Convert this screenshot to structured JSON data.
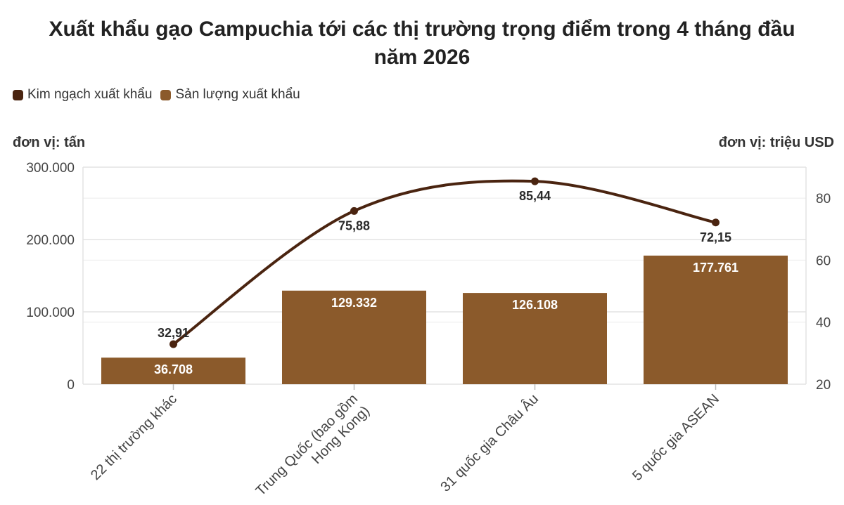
{
  "title_line1": "Xuất khẩu gạo Campuchia tới các thị trường trọng điểm trong 4 tháng đầu",
  "title_line2": "năm 2026",
  "legend": [
    {
      "label": "Kim ngạch xuất khẩu",
      "color": "#4a2410"
    },
    {
      "label": "Sản lượng xuất khẩu",
      "color": "#8b5a2b"
    }
  ],
  "unit_left": "đơn vị: tấn",
  "unit_right": "đơn vị: triệu USD",
  "chart_data": {
    "type": "bar+line",
    "categories": [
      [
        "22 thị trường khác"
      ],
      [
        "Trung Quốc (bao gồm",
        "Hong Kong)"
      ],
      [
        "31 quốc gia Châu Âu"
      ],
      [
        "5 quốc gia ASEAN"
      ]
    ],
    "bar_series": {
      "name": "Sản lượng xuất khẩu",
      "values": [
        36708,
        129332,
        126108,
        177761
      ],
      "labels": [
        "36.708",
        "129.332",
        "126.108",
        "177.761"
      ]
    },
    "line_series": {
      "name": "Kim ngạch xuất khẩu",
      "values": [
        32.91,
        75.88,
        85.44,
        72.15
      ],
      "labels": [
        "32,91",
        "75,88",
        "85,44",
        "72,15"
      ]
    },
    "y_left": {
      "range": [
        0,
        300000
      ],
      "ticks": [
        0,
        100000,
        200000,
        300000
      ],
      "tick_labels": [
        "0",
        "100.000",
        "200.000",
        "300.000"
      ]
    },
    "y_right": {
      "range": [
        20,
        90
      ],
      "ticks": [
        20,
        40,
        60,
        80
      ],
      "tick_labels": [
        "20",
        "40",
        "60",
        "80"
      ]
    },
    "grid": true,
    "legend_position": "top-left",
    "bar_color": "#8b5a2b",
    "line_color": "#4a2410"
  }
}
